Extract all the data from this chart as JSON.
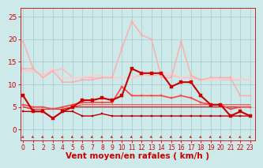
{
  "background_color": "#cee9e9",
  "grid_color": "#aacece",
  "xlabel": "Vent moyen/en rafales ( km/h )",
  "xlabel_color": "#cc0000",
  "xlabel_fontsize": 7.5,
  "xticks": [
    0,
    1,
    2,
    3,
    4,
    5,
    6,
    7,
    8,
    9,
    10,
    11,
    12,
    13,
    14,
    15,
    16,
    17,
    18,
    19,
    20,
    21,
    22,
    23
  ],
  "yticks": [
    0,
    5,
    10,
    15,
    20,
    25
  ],
  "ylim": [
    -2.5,
    27
  ],
  "xlim": [
    -0.3,
    23.5
  ],
  "lines": [
    {
      "y": [
        19.5,
        13.5,
        null,
        null,
        null,
        null,
        null,
        null,
        null,
        null,
        null,
        null,
        null,
        null,
        null,
        null,
        null,
        null,
        null,
        null,
        null,
        null,
        null,
        null
      ],
      "color": "#ffaaaa",
      "lw": 1.0,
      "marker": "s",
      "ms": 2.0,
      "zorder": 3
    },
    {
      "y": [
        13.5,
        13.5,
        11.5,
        13.0,
        10.5,
        10.5,
        11.0,
        11.0,
        11.5,
        11.5,
        18.0,
        24.0,
        21.0,
        20.0,
        11.5,
        11.5,
        19.5,
        12.0,
        11.0,
        11.5,
        11.5,
        11.5,
        7.5,
        7.5
      ],
      "color": "#ffaaaa",
      "lw": 1.0,
      "marker": "s",
      "ms": 2.0,
      "zorder": 3
    },
    {
      "y": [
        13.0,
        13.0,
        12.0,
        13.0,
        13.5,
        11.5,
        11.5,
        11.5,
        11.5,
        11.5,
        11.5,
        11.5,
        12.0,
        12.0,
        12.0,
        12.0,
        11.5,
        11.5,
        11.0,
        11.0,
        11.0,
        11.0,
        11.0,
        11.0
      ],
      "color": "#ffbbbb",
      "lw": 1.0,
      "marker": "s",
      "ms": 1.5,
      "zorder": 2
    },
    {
      "y": [
        13.0,
        13.0,
        12.0,
        13.5,
        11.5,
        11.5,
        11.5,
        12.0,
        12.0,
        11.5,
        11.5,
        11.5,
        12.5,
        12.5,
        12.5,
        12.5,
        11.5,
        12.0,
        11.0,
        11.0,
        11.0,
        11.5,
        11.0,
        11.0
      ],
      "color": "#ffcccc",
      "lw": 0.8,
      "marker": "s",
      "ms": 1.5,
      "zorder": 2
    },
    {
      "y": [
        7.5,
        4.0,
        4.0,
        2.5,
        4.0,
        5.0,
        6.5,
        6.5,
        7.0,
        6.5,
        7.5,
        13.5,
        12.5,
        12.5,
        12.5,
        9.5,
        10.5,
        10.5,
        7.5,
        5.5,
        5.5,
        3.0,
        4.0,
        3.0
      ],
      "color": "#cc0000",
      "lw": 1.5,
      "marker": "s",
      "ms": 2.5,
      "zorder": 5
    },
    {
      "y": [
        5.5,
        5.0,
        5.0,
        4.5,
        5.0,
        5.5,
        6.0,
        6.0,
        6.0,
        6.0,
        9.5,
        7.5,
        7.5,
        7.5,
        7.5,
        7.0,
        7.5,
        7.0,
        6.0,
        5.5,
        5.5,
        4.5,
        5.0,
        5.0
      ],
      "color": "#ff4444",
      "lw": 1.2,
      "marker": "s",
      "ms": 2.0,
      "zorder": 4
    },
    {
      "y": [
        4.0,
        4.0,
        4.0,
        2.5,
        4.0,
        4.0,
        3.0,
        3.0,
        3.5,
        3.0,
        3.0,
        3.0,
        3.0,
        3.0,
        3.0,
        3.0,
        3.0,
        3.0,
        3.0,
        3.0,
        3.0,
        3.0,
        3.0,
        3.0
      ],
      "color": "#bb0000",
      "lw": 1.0,
      "marker": "s",
      "ms": 2.0,
      "zorder": 4
    },
    {
      "y": [
        5.0,
        4.5,
        4.5,
        4.5,
        4.5,
        5.0,
        5.0,
        5.0,
        5.0,
        5.0,
        5.0,
        5.0,
        5.0,
        5.0,
        5.0,
        5.0,
        5.0,
        5.0,
        5.0,
        5.0,
        5.0,
        5.0,
        5.0,
        5.0
      ],
      "color": "#dd1111",
      "lw": 0.8,
      "marker": null,
      "ms": 0,
      "zorder": 3
    },
    {
      "y": [
        5.0,
        4.5,
        4.5,
        4.5,
        4.5,
        5.0,
        5.5,
        5.5,
        5.5,
        5.5,
        5.5,
        5.5,
        5.5,
        5.5,
        5.5,
        5.5,
        5.5,
        5.5,
        5.5,
        5.5,
        5.5,
        5.5,
        5.5,
        5.5
      ],
      "color": "#ee3333",
      "lw": 0.7,
      "marker": null,
      "ms": 0,
      "zorder": 3
    }
  ],
  "tick_color": "#cc0000",
  "tick_fontsize": 5.5,
  "ytick_fontsize": 6.5,
  "arrow_color": "#cc0000"
}
